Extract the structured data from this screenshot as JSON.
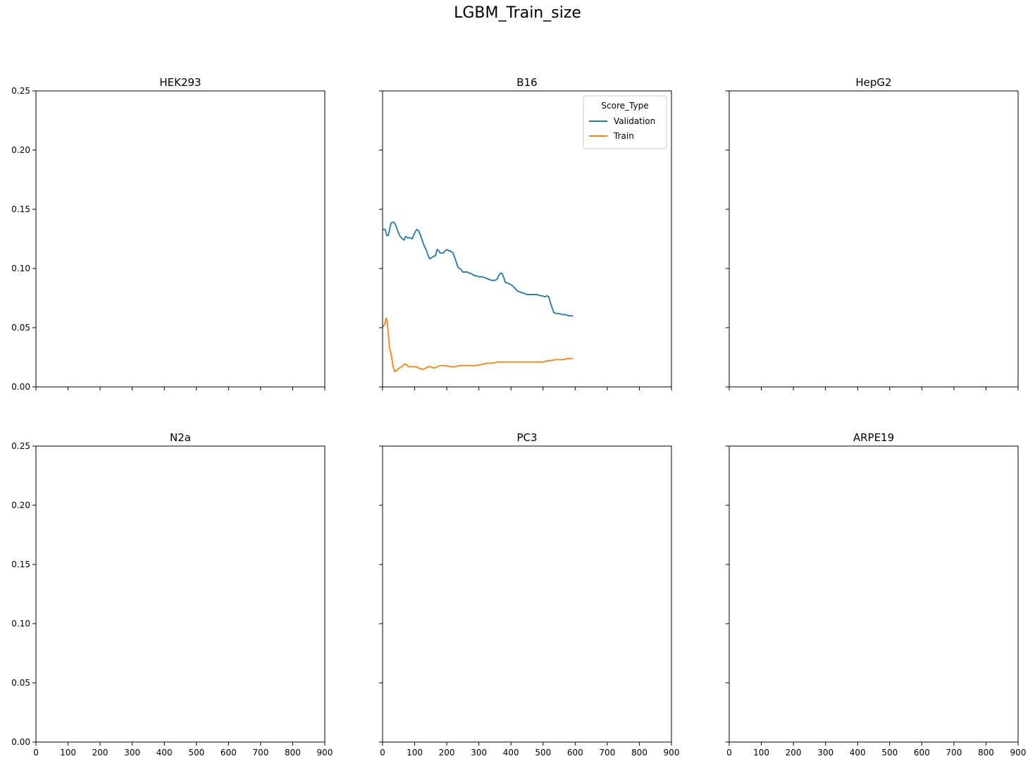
{
  "title": "LGBM_Train_size",
  "chart_data": {
    "type": "line",
    "title": "LGBM_Train_size",
    "layout": "2x3 grid of subplots with shared axes",
    "xlim": [
      0,
      900
    ],
    "ylim": [
      0,
      0.25
    ],
    "x_ticks": [
      "0",
      "100",
      "200",
      "300",
      "400",
      "500",
      "600",
      "700",
      "800",
      "900"
    ],
    "y_ticks": [
      "0.00",
      "0.05",
      "0.10",
      "0.15",
      "0.20",
      "0.25"
    ],
    "grid": false,
    "legend": {
      "title": "Score_Type",
      "location": "upper right of B16 panel",
      "entries": [
        {
          "name": "Validation",
          "color": "#1f77b4"
        },
        {
          "name": "Train",
          "color": "#ff7f0e"
        }
      ]
    },
    "panels": [
      {
        "title": "HEK293",
        "series": []
      },
      {
        "title": "B16",
        "series": [
          {
            "name": "Validation",
            "color": "#1f77b4",
            "x": [
              3,
              8,
              13,
              18,
              22,
              26,
              30,
              36,
              42,
              48,
              55,
              62,
              67,
              72,
              78,
              85,
              92,
              97,
              102,
              107,
              112,
              117,
              122,
              127,
              132,
              137,
              142,
              147,
              152,
              158,
              165,
              170,
              175,
              180,
              185,
              190,
              195,
              200,
              205,
              210,
              215,
              220,
              225,
              230,
              235,
              240,
              245,
              250,
              255,
              260,
              265,
              270,
              275,
              280,
              285,
              290,
              300,
              310,
              320,
              330,
              340,
              350,
              357,
              362,
              367,
              372,
              378,
              383,
              388,
              395,
              402,
              410,
              420,
              430,
              440,
              450,
              460,
              470,
              480,
              490,
              498,
              505,
              512,
              518,
              523,
              528,
              533,
              540,
              550,
              560,
              570,
              580,
              592
            ],
            "y": [
              0.133,
              0.133,
              0.128,
              0.128,
              0.133,
              0.138,
              0.139,
              0.139,
              0.136,
              0.131,
              0.127,
              0.125,
              0.124,
              0.127,
              0.126,
              0.126,
              0.125,
              0.128,
              0.131,
              0.133,
              0.132,
              0.129,
              0.125,
              0.121,
              0.118,
              0.115,
              0.111,
              0.108,
              0.109,
              0.11,
              0.111,
              0.116,
              0.115,
              0.113,
              0.113,
              0.113,
              0.115,
              0.116,
              0.115,
              0.115,
              0.114,
              0.113,
              0.109,
              0.105,
              0.101,
              0.1,
              0.099,
              0.097,
              0.097,
              0.097,
              0.097,
              0.096,
              0.096,
              0.095,
              0.094,
              0.094,
              0.093,
              0.093,
              0.092,
              0.091,
              0.09,
              0.09,
              0.091,
              0.094,
              0.096,
              0.096,
              0.092,
              0.088,
              0.088,
              0.087,
              0.086,
              0.084,
              0.081,
              0.08,
              0.079,
              0.078,
              0.078,
              0.078,
              0.078,
              0.077,
              0.077,
              0.076,
              0.077,
              0.076,
              0.071,
              0.067,
              0.063,
              0.062,
              0.062,
              0.061,
              0.061,
              0.06,
              0.06
            ]
          },
          {
            "name": "Train",
            "color": "#ff7f0e",
            "x": [
              2,
              7,
              11,
              14,
              18,
              22,
              26,
              30,
              34,
              38,
              45,
              52,
              60,
              67,
              74,
              80,
              88,
              96,
              104,
              112,
              120,
              127,
              135,
              143,
              150,
              157,
              163,
              170,
              178,
              185,
              195,
              210,
              225,
              240,
              255,
              270,
              290,
              310,
              325,
              340,
              360,
              380,
              400,
              420,
              440,
              460,
              480,
              500,
              510,
              520,
              540,
              560,
              580,
              592
            ],
            "y": [
              0.051,
              0.053,
              0.058,
              0.056,
              0.045,
              0.032,
              0.029,
              0.022,
              0.016,
              0.013,
              0.014,
              0.016,
              0.017,
              0.019,
              0.019,
              0.017,
              0.017,
              0.017,
              0.017,
              0.016,
              0.015,
              0.015,
              0.016,
              0.017,
              0.017,
              0.016,
              0.016,
              0.017,
              0.018,
              0.018,
              0.018,
              0.017,
              0.017,
              0.018,
              0.018,
              0.018,
              0.018,
              0.019,
              0.02,
              0.02,
              0.021,
              0.021,
              0.021,
              0.021,
              0.021,
              0.021,
              0.021,
              0.021,
              0.022,
              0.022,
              0.023,
              0.023,
              0.024,
              0.024
            ]
          }
        ]
      },
      {
        "title": "HepG2",
        "series": []
      },
      {
        "title": "N2a",
        "series": []
      },
      {
        "title": "PC3",
        "series": []
      },
      {
        "title": "ARPE19",
        "series": []
      }
    ]
  }
}
